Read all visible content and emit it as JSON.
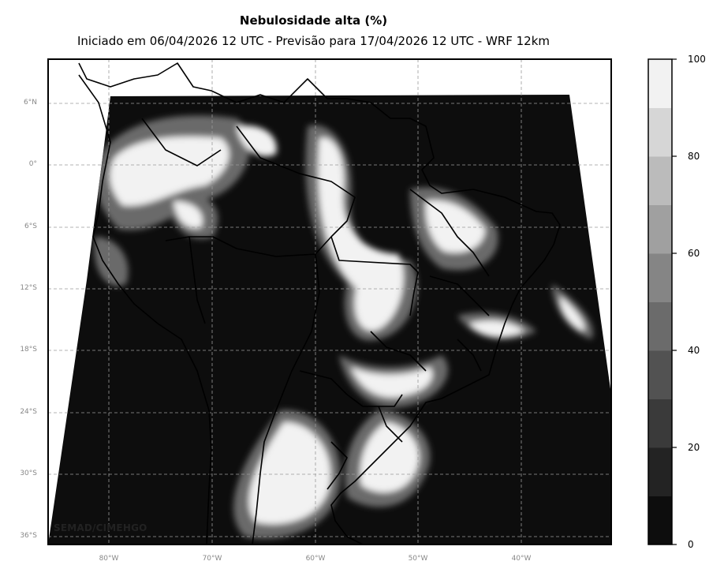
{
  "title": "Nebulosidade alta (%)",
  "subtitle": "Iniciado em 06/04/2026 12 UTC - Previsão para 17/04/2026 12 UTC - WRF 12km",
  "credit": "SEMAD/CIMEHGO",
  "lat_ticks": [
    "6°N",
    "0°",
    "6°S",
    "12°S",
    "18°S",
    "24°S",
    "30°S",
    "36°S"
  ],
  "lon_ticks": [
    "80°W",
    "70°W",
    "60°W",
    "50°W",
    "40°W"
  ],
  "colorbar": {
    "ticks": [
      "0",
      "20",
      "40",
      "60",
      "80",
      "100"
    ],
    "levels": [
      {
        "range": "0-10",
        "color": "#0d0d0d"
      },
      {
        "range": "10-20",
        "color": "#232323"
      },
      {
        "range": "20-30",
        "color": "#3a3a3a"
      },
      {
        "range": "30-40",
        "color": "#525252"
      },
      {
        "range": "40-50",
        "color": "#6b6b6b"
      },
      {
        "range": "50-60",
        "color": "#858585"
      },
      {
        "range": "60-70",
        "color": "#a0a0a0"
      },
      {
        "range": "70-80",
        "color": "#bbbbbb"
      },
      {
        "range": "80-90",
        "color": "#d6d6d6"
      },
      {
        "range": "90-100",
        "color": "#f2f2f2"
      }
    ]
  },
  "colors": {
    "low_cloud": "#0d0d0d",
    "high_cloud": "#f2f2f2",
    "borders": "#000000",
    "grid": "#9a9a9a"
  }
}
